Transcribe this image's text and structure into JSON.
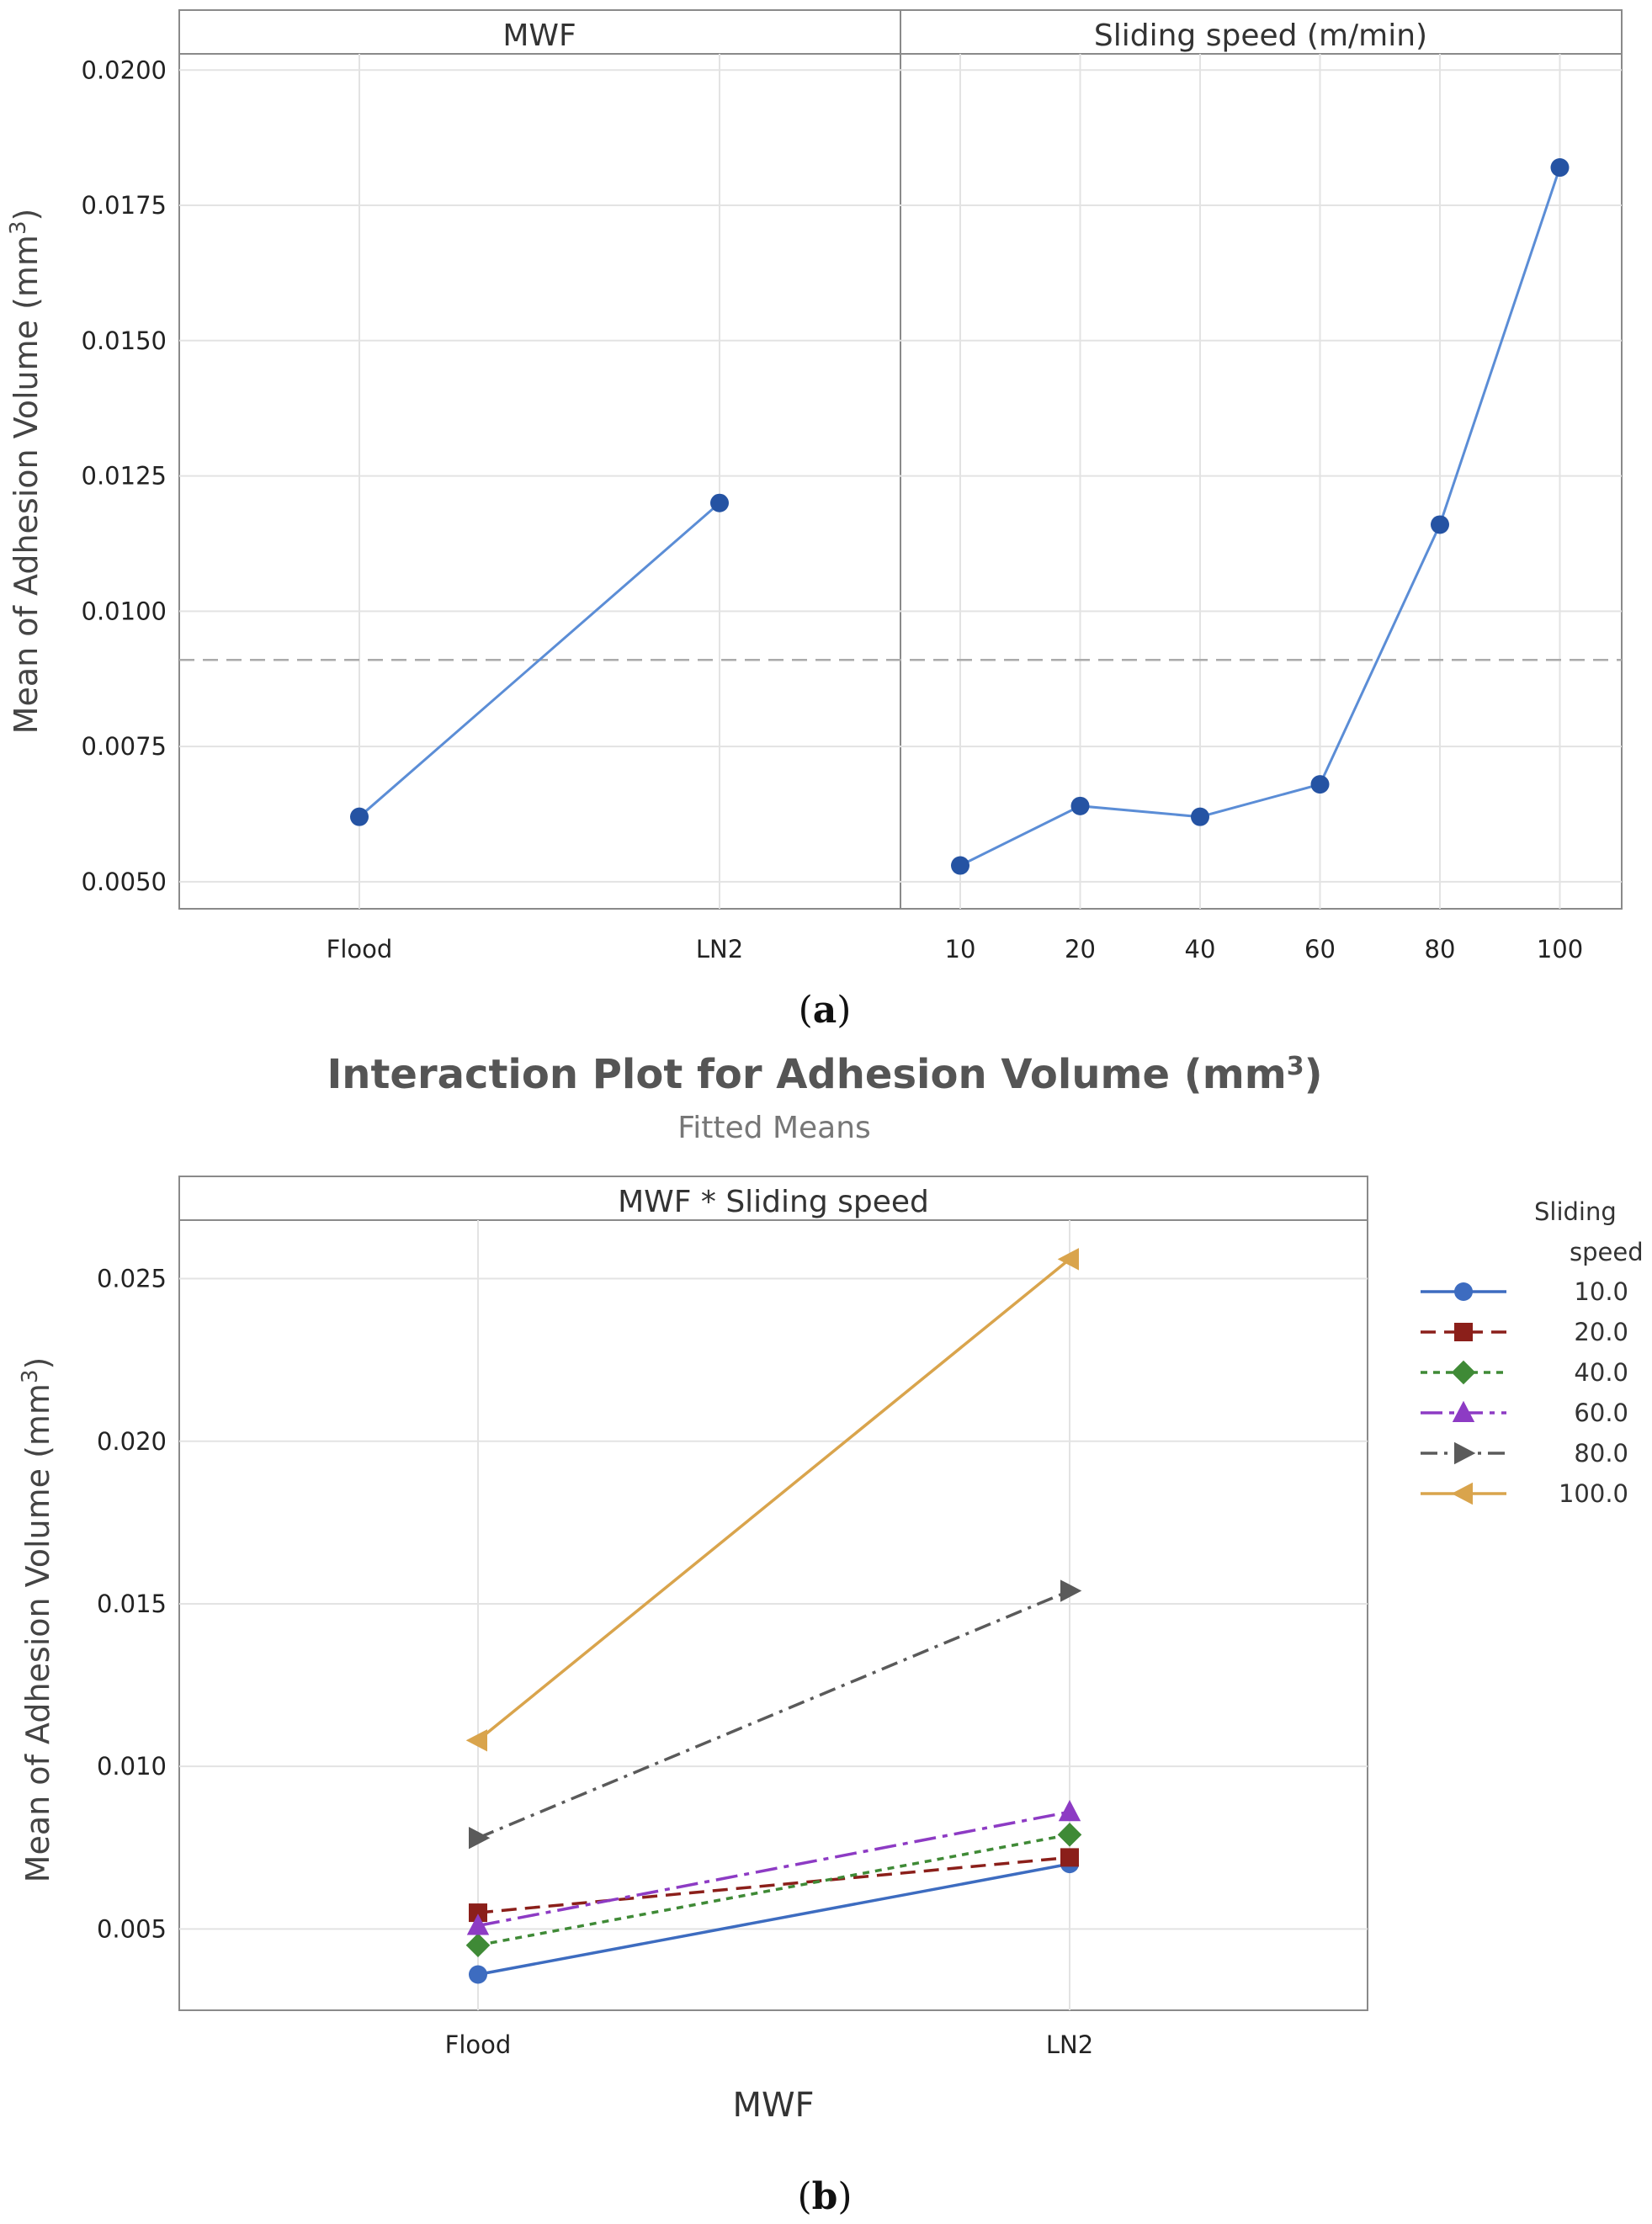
{
  "chart_data": [
    {
      "type": "line",
      "panel_label": "a",
      "title": "",
      "ylabel": "Mean of Adhesion Volume (mm",
      "ylabel_sup": "3",
      "ylabel_end": ")",
      "ylim": [
        0.0045,
        0.0203
      ],
      "yticks": [
        "0.0050",
        "0.0075",
        "0.0100",
        "0.0125",
        "0.0150",
        "0.0175",
        "0.0200"
      ],
      "ytick_values": [
        0.005,
        0.0075,
        0.01,
        0.0125,
        0.015,
        0.0175,
        0.02
      ],
      "reference_mean": 0.0091,
      "panels": [
        {
          "strip": "MWF",
          "categories": [
            "Flood",
            "LN2"
          ],
          "values": [
            0.0062,
            0.012
          ]
        },
        {
          "strip": "Sliding speed (m/min)",
          "categories": [
            "10",
            "20",
            "40",
            "60",
            "80",
            "100"
          ],
          "values": [
            0.0053,
            0.0064,
            0.0062,
            0.0068,
            0.0116,
            0.0182
          ]
        }
      ],
      "line_color": "#5b8dd6",
      "marker_color": "#2553a3"
    },
    {
      "type": "line",
      "panel_label": "b",
      "title": "Interaction Plot for Adhesion Volume (mm",
      "title_sup": "3",
      "title_end": ")",
      "subtitle": "Fitted Means",
      "strip": "MWF * Sliding speed",
      "xlabel": "MWF",
      "ylabel": "Mean of Adhesion Volume (mm",
      "ylabel_sup": "3",
      "ylabel_end": ")",
      "categories": [
        "Flood",
        "LN2"
      ],
      "ylim": [
        0.0025,
        0.0268
      ],
      "yticks": [
        "0.005",
        "0.010",
        "0.015",
        "0.020",
        "0.025"
      ],
      "ytick_values": [
        0.005,
        0.01,
        0.015,
        0.02,
        0.025
      ],
      "legend_title_1": "Sliding",
      "legend_title_2": "speed",
      "series": [
        {
          "name": "10.0",
          "values": [
            0.0036,
            0.007
          ],
          "color": "#3d6cc0",
          "marker": "circle",
          "dash": ""
        },
        {
          "name": "20.0",
          "values": [
            0.0055,
            0.0072
          ],
          "color": "#8b1f1a",
          "marker": "square",
          "dash": "18,10"
        },
        {
          "name": "40.0",
          "values": [
            0.0045,
            0.0079
          ],
          "color": "#3f8a36",
          "marker": "diamond",
          "dash": "8,7"
        },
        {
          "name": "60.0",
          "values": [
            0.0051,
            0.0086
          ],
          "color": "#8d3bc4",
          "marker": "triangle-up",
          "dash": "26,8,6,8"
        },
        {
          "name": "80.0",
          "values": [
            0.0078,
            0.0154
          ],
          "color": "#5a5a5a",
          "marker": "triangle-right",
          "dash": "20,8,4,8"
        },
        {
          "name": "100.0",
          "values": [
            0.0108,
            0.0256
          ],
          "color": "#d9a44c",
          "marker": "triangle-left",
          "dash": ""
        }
      ]
    }
  ]
}
